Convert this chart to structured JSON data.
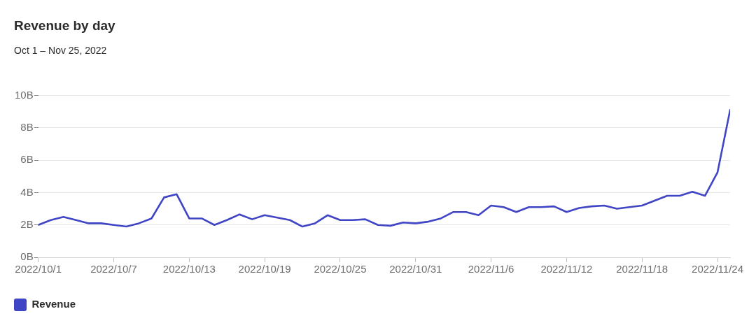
{
  "chart_data": {
    "type": "line",
    "title": "Revenue by day",
    "subtitle": "Oct 1 – Nov 25, 2022",
    "x": [
      "2022-10-01",
      "2022-10-02",
      "2022-10-03",
      "2022-10-04",
      "2022-10-05",
      "2022-10-06",
      "2022-10-07",
      "2022-10-08",
      "2022-10-09",
      "2022-10-10",
      "2022-10-11",
      "2022-10-12",
      "2022-10-13",
      "2022-10-14",
      "2022-10-15",
      "2022-10-16",
      "2022-10-17",
      "2022-10-18",
      "2022-10-19",
      "2022-10-20",
      "2022-10-21",
      "2022-10-22",
      "2022-10-23",
      "2022-10-24",
      "2022-10-25",
      "2022-10-26",
      "2022-10-27",
      "2022-10-28",
      "2022-10-29",
      "2022-10-30",
      "2022-10-31",
      "2022-11-01",
      "2022-11-02",
      "2022-11-03",
      "2022-11-04",
      "2022-11-05",
      "2022-11-06",
      "2022-11-07",
      "2022-11-08",
      "2022-11-09",
      "2022-11-10",
      "2022-11-11",
      "2022-11-12",
      "2022-11-13",
      "2022-11-14",
      "2022-11-15",
      "2022-11-16",
      "2022-11-17",
      "2022-11-18",
      "2022-11-19",
      "2022-11-20",
      "2022-11-21",
      "2022-11-22",
      "2022-11-23",
      "2022-11-24",
      "2022-11-25"
    ],
    "series": [
      {
        "name": "Revenue",
        "color": "#3f45c4",
        "values": [
          2.0,
          2.3,
          2.5,
          2.3,
          2.1,
          2.1,
          2.0,
          1.9,
          2.1,
          2.4,
          3.7,
          3.9,
          2.4,
          2.4,
          2.0,
          2.3,
          2.65,
          2.35,
          2.6,
          2.45,
          2.3,
          1.9,
          2.1,
          2.6,
          2.3,
          2.3,
          2.35,
          2.0,
          1.95,
          2.15,
          2.1,
          2.2,
          2.4,
          2.8,
          2.8,
          2.6,
          3.2,
          3.1,
          2.8,
          3.1,
          3.1,
          3.15,
          2.8,
          3.05,
          3.15,
          3.2,
          3.0,
          3.1,
          3.2,
          3.5,
          3.8,
          3.8,
          4.05,
          3.8,
          5.25,
          9.1
        ]
      }
    ],
    "xlim": [
      "2022-10-01",
      "2022-11-25"
    ],
    "xticks": [
      {
        "value": "2022-10-01",
        "label": "2022/10/1"
      },
      {
        "value": "2022-10-07",
        "label": "2022/10/7"
      },
      {
        "value": "2022-10-13",
        "label": "2022/10/13"
      },
      {
        "value": "2022-10-19",
        "label": "2022/10/19"
      },
      {
        "value": "2022-10-25",
        "label": "2022/10/25"
      },
      {
        "value": "2022-10-31",
        "label": "2022/10/31"
      },
      {
        "value": "2022-11-06",
        "label": "2022/11/6"
      },
      {
        "value": "2022-11-12",
        "label": "2022/11/12"
      },
      {
        "value": "2022-11-18",
        "label": "2022/11/18"
      },
      {
        "value": "2022-11-24",
        "label": "2022/11/24"
      }
    ],
    "ylim": [
      0,
      10
    ],
    "yticks": [
      {
        "value": 0,
        "label": "0B"
      },
      {
        "value": 2,
        "label": "2B"
      },
      {
        "value": 4,
        "label": "4B"
      },
      {
        "value": 6,
        "label": "6B"
      },
      {
        "value": 8,
        "label": "8B"
      },
      {
        "value": 10,
        "label": "10B"
      }
    ],
    "grid": "y",
    "legend": "bottom left",
    "marker": "none",
    "line_style": "solid"
  }
}
